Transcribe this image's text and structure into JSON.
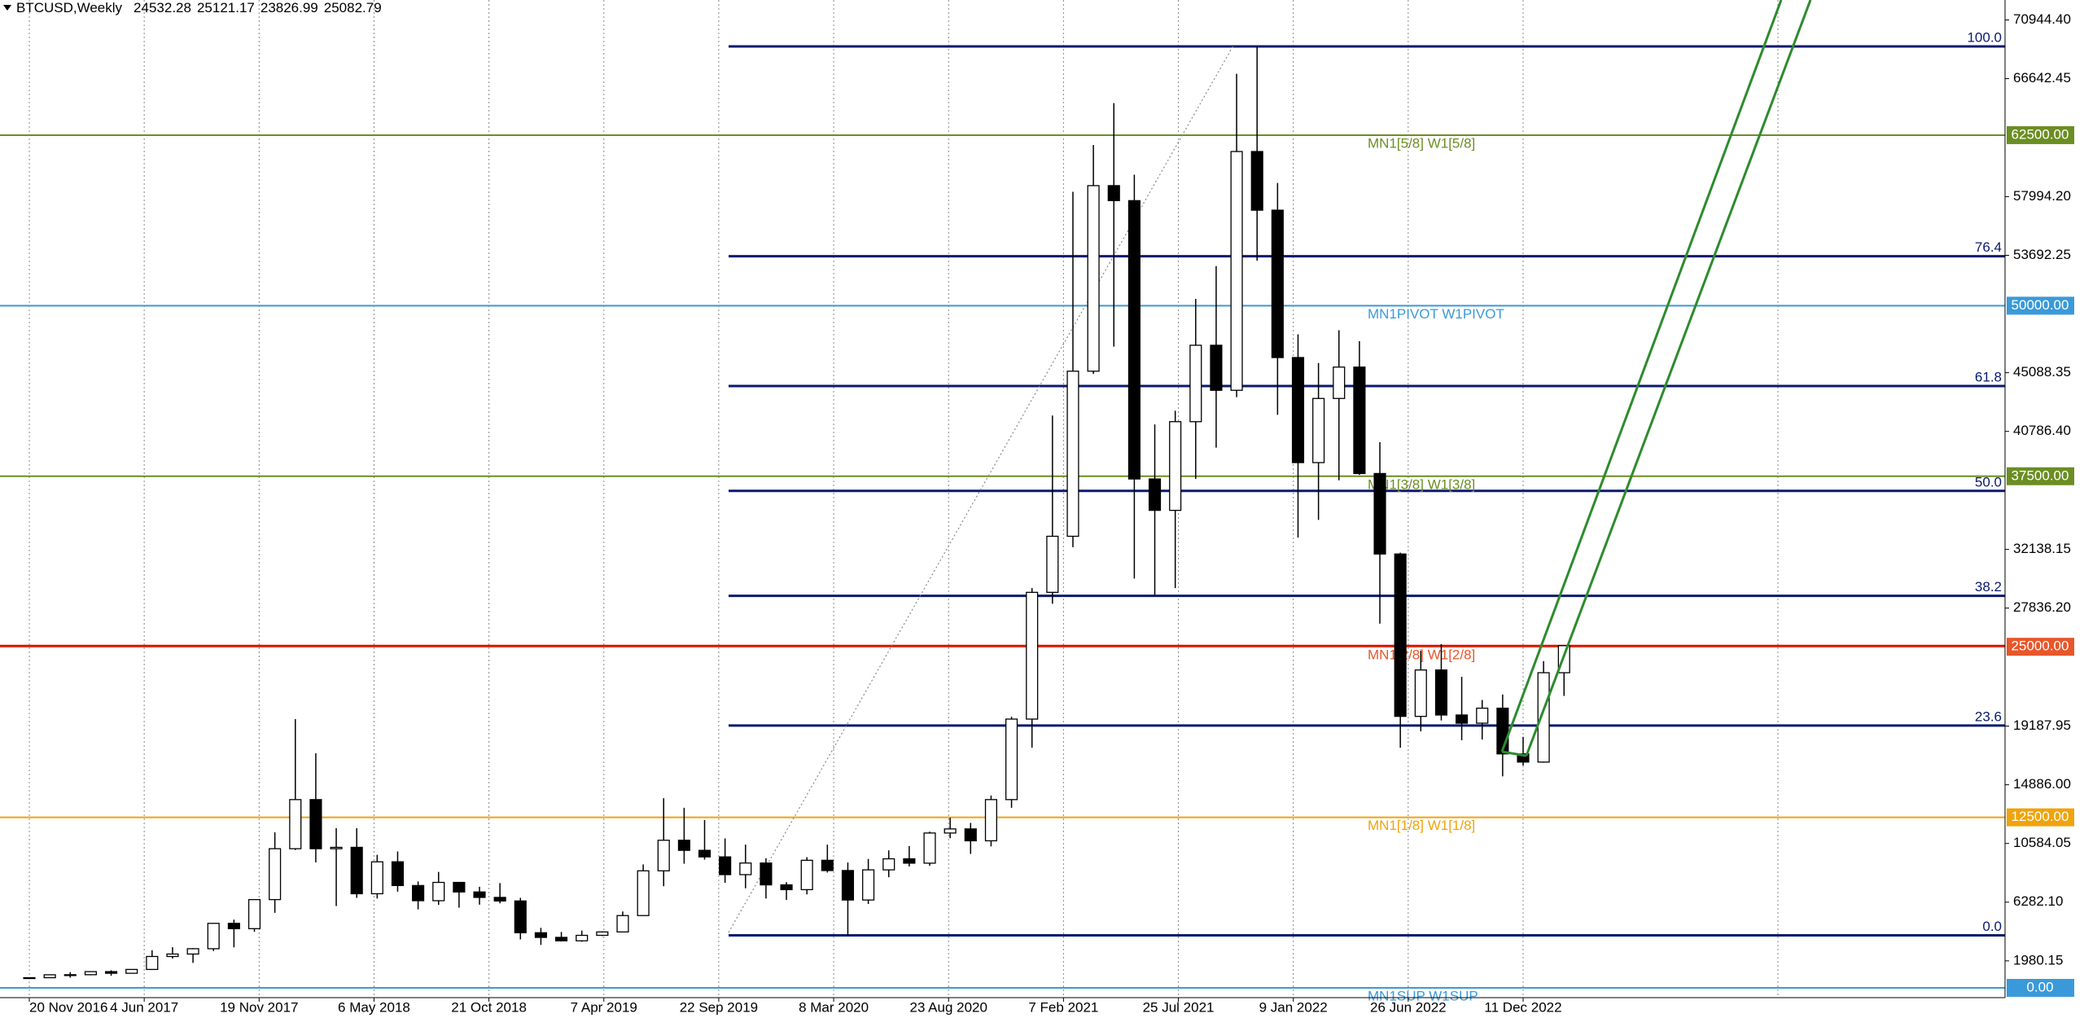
{
  "chart_data": {
    "type": "candlestick",
    "header": {
      "symbol": "BTCUSD,Weekly",
      "open": 24532.28,
      "high": 25121.17,
      "low": 23826.99,
      "close": 25082.79
    },
    "ylim": [
      -716,
      72406
    ],
    "yticks": [
      {
        "value": 70944.4,
        "label": "70944.40"
      },
      {
        "value": 66642.45,
        "label": "66642.45"
      },
      {
        "value": 57994.2,
        "label": "57994.20"
      },
      {
        "value": 53692.25,
        "label": "53692.25"
      },
      {
        "value": 45088.35,
        "label": "45088.35"
      },
      {
        "value": 40786.4,
        "label": "40786.40"
      },
      {
        "value": 32138.15,
        "label": "32138.15"
      },
      {
        "value": 27836.2,
        "label": "27836.20"
      },
      {
        "value": 19187.95,
        "label": "19187.95"
      },
      {
        "value": 14886.0,
        "label": "14886.00"
      },
      {
        "value": 10584.05,
        "label": "10584.05"
      },
      {
        "value": 6282.1,
        "label": "6282.10"
      },
      {
        "value": 1980.15,
        "label": "1980.15"
      }
    ],
    "xtick_labels": [
      "20 Nov 2016",
      "4 Jun 2017",
      "19 Nov 2017",
      "6 May 2018",
      "21 Oct 2018",
      "7 Apr 2019",
      "22 Sep 2019",
      "8 Mar 2020",
      "23 Aug 2020",
      "7 Feb 2021",
      "25 Jul 2021",
      "9 Jan 2022",
      "26 Jun 2022",
      "11 Dec 2022"
    ],
    "grid": true,
    "candles": {
      "open": [
        700,
        745,
        960,
        965,
        1190,
        1070,
        1350,
        2300,
        2480,
        2870,
        4730,
        4340,
        6470,
        10200,
        13800,
        10200,
        10300,
        6900,
        9240,
        7500,
        6390,
        7730,
        7030,
        6630,
        6370,
        4040,
        3700,
        3450,
        3850,
        4100,
        5300,
        8580,
        10820,
        10080,
        9600,
        8300,
        9150,
        7550,
        7200,
        9350,
        8600,
        6440,
        8650,
        9460,
        9140,
        11350,
        11650,
        10780,
        13800,
        19700,
        28990,
        33100,
        45200,
        58800,
        57700,
        37300,
        35000,
        41500,
        47100,
        43800,
        61300,
        57000,
        46200,
        38500,
        43200,
        45500,
        37700,
        31800,
        19900,
        23300,
        20000,
        19400,
        20500,
        17150,
        16550,
        23100
      ],
      "high": [
        750,
        970,
        1150,
        1200,
        1290,
        1350,
        2760,
        2980,
        2920,
        4740,
        5000,
        6470,
        11400,
        19700,
        17200,
        11700,
        11700,
        9750,
        10000,
        7800,
        8500,
        7760,
        7410,
        7680,
        6600,
        4400,
        4100,
        4200,
        4150,
        5600,
        9050,
        13900,
        13200,
        12300,
        10950,
        10500,
        9500,
        7750,
        9580,
        10500,
        9190,
        9450,
        10080,
        10390,
        11450,
        12470,
        12090,
        14100,
        19870,
        29300,
        41950,
        58350,
        61780,
        64850,
        59600,
        41300,
        42300,
        50500,
        52900,
        67000,
        69000,
        59000,
        47900,
        45800,
        48200,
        47400,
        40000,
        31900,
        24700,
        25200,
        22800,
        21100,
        21500,
        18400,
        23950,
        25121
      ],
      "low": [
        690,
        745,
        750,
        920,
        890,
        1060,
        1350,
        2150,
        1830,
        2700,
        2970,
        4110,
        5500,
        10100,
        9200,
        6000,
        6600,
        6550,
        7050,
        5750,
        6080,
        5880,
        6100,
        6200,
        3550,
        3150,
        3400,
        3380,
        3800,
        4100,
        5300,
        7450,
        9100,
        9400,
        7700,
        7300,
        6550,
        6450,
        6850,
        8450,
        3850,
        6150,
        8110,
        8900,
        8950,
        10970,
        9820,
        10370,
        13200,
        17600,
        28150,
        32300,
        45000,
        47000,
        30000,
        28800,
        29300,
        37300,
        39600,
        43300,
        53300,
        42000,
        33000,
        34300,
        37200,
        37600,
        26700,
        17600,
        18800,
        19600,
        18150,
        18200,
        15500,
        16300,
        16500,
        21400
      ],
      "close": [
        745,
        960,
        965,
        1190,
        1070,
        1350,
        2300,
        2480,
        2870,
        4730,
        4340,
        6470,
        10200,
        13800,
        10200,
        10300,
        6900,
        9240,
        7500,
        6390,
        7730,
        7030,
        6630,
        6370,
        4040,
        3700,
        3450,
        3850,
        4100,
        5300,
        8580,
        10820,
        10080,
        9600,
        8300,
        9150,
        7550,
        7200,
        9350,
        8600,
        6440,
        8650,
        9460,
        9140,
        11350,
        11650,
        10780,
        13800,
        19700,
        28990,
        33100,
        45200,
        58800,
        57700,
        37300,
        35000,
        41500,
        47100,
        43800,
        61300,
        57000,
        46200,
        38500,
        43200,
        45500,
        37700,
        31800,
        19900,
        23300,
        20000,
        19400,
        20500,
        17150,
        16550,
        23100,
        25083
      ]
    },
    "levels": [
      {
        "label": "MN1[5/8] W1[5/8]",
        "value": 62500,
        "value_label": "62500.00",
        "color": "#6b8e23"
      },
      {
        "label": "MN1PIVOT W1PIVOT",
        "value": 50000,
        "value_label": "50000.00",
        "color": "#3a9ad9"
      },
      {
        "label": "MN1[3/8] W1[3/8]",
        "value": 37500,
        "value_label": "37500.00",
        "color": "#6b8e23"
      },
      {
        "label": "MN1[2/8] W1[2/8]",
        "value": 25000,
        "value_label": "25000.00",
        "color": "#e8562a"
      },
      {
        "label": "MN1[1/8] W1[1/8]",
        "value": 12500,
        "value_label": "12500.00",
        "color": "#f0a30a"
      },
      {
        "label": "MN1SUP W1SUP",
        "value": 0,
        "value_label": "0.00",
        "color": "#3a9ad9"
      }
    ],
    "fib_levels": [
      {
        "label": "100.0",
        "value": 69000
      },
      {
        "label": "76.4",
        "value": 53623
      },
      {
        "label": "61.8",
        "value": 44112
      },
      {
        "label": "50.0",
        "value": 36425
      },
      {
        "label": "38.2",
        "value": 28737
      },
      {
        "label": "23.6",
        "value": 19225
      },
      {
        "label": "0.0",
        "value": 3850
      }
    ],
    "fib_color": "#0a1a6e",
    "price_line_color": "#e00000"
  }
}
